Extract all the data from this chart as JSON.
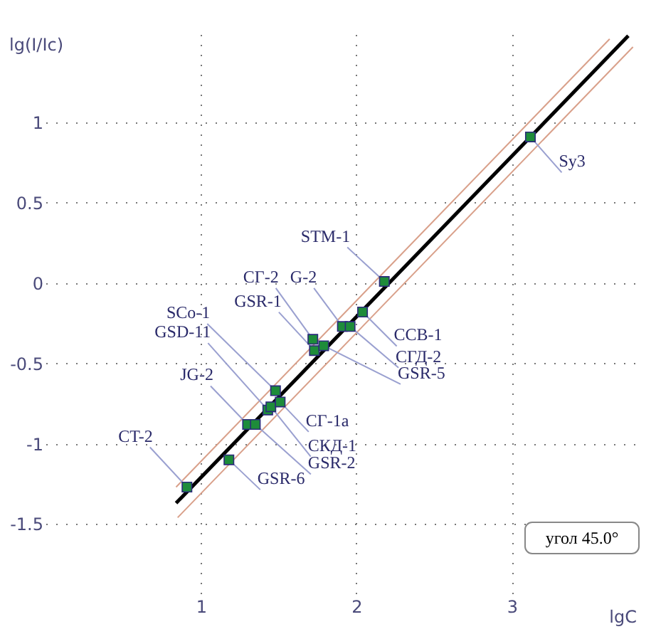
{
  "chart_data": {
    "type": "scatter",
    "xlabel": "lgC",
    "ylabel": "lg(I/Ic)",
    "xlim": [
      0,
      3.8
    ],
    "ylim": [
      -1.95,
      1.55
    ],
    "xticks": [
      1,
      2,
      3
    ],
    "yticks": [
      -1.5,
      -1,
      -0.5,
      0,
      0.5,
      1
    ],
    "grid": true,
    "series": [
      {
        "type": "line",
        "color": "#000000",
        "x": [
          0.84,
          3.75
        ],
        "values": [
          -1.37,
          1.54
        ]
      },
      {
        "type": "line",
        "color": "#d9a08a",
        "x": [
          0.84,
          3.63
        ],
        "values": [
          -1.27,
          1.52
        ]
      },
      {
        "type": "line",
        "color": "#d9a08a",
        "x": [
          0.85,
          3.78
        ],
        "values": [
          -1.46,
          1.47
        ]
      },
      {
        "marker": "square",
        "color": "#1e8c3a",
        "x": [
          0.91,
          1.18,
          1.3,
          1.35,
          1.43,
          1.45,
          1.48,
          1.51,
          1.72,
          1.73,
          1.79,
          1.91,
          1.96,
          2.04,
          2.18,
          3.12
        ],
        "values": [
          -1.27,
          -1.1,
          -0.88,
          -0.88,
          -0.79,
          -0.77,
          -0.67,
          -0.74,
          -0.35,
          -0.42,
          -0.39,
          -0.27,
          -0.27,
          -0.18,
          0.01,
          0.91
        ]
      }
    ],
    "annotations": [
      {
        "text": "CT-2",
        "x": 0.91,
        "y": -1.27
      },
      {
        "text": "GSR-6",
        "x": 1.18,
        "y": -1.1
      },
      {
        "text": "JG-2",
        "x": 1.3,
        "y": -0.88
      },
      {
        "text": "GSR-2",
        "x": 1.35,
        "y": -0.88
      },
      {
        "text": "GSD-11",
        "x": 1.43,
        "y": -0.79
      },
      {
        "text": "СКД-1",
        "x": 1.45,
        "y": -0.77
      },
      {
        "text": "SCo-1",
        "x": 1.48,
        "y": -0.67
      },
      {
        "text": "СГ-1а",
        "x": 1.51,
        "y": -0.74
      },
      {
        "text": "СГ-2",
        "x": 1.72,
        "y": -0.35
      },
      {
        "text": "GSR-1",
        "x": 1.73,
        "y": -0.42
      },
      {
        "text": "GSR-5",
        "x": 1.79,
        "y": -0.39
      },
      {
        "text": "G-2",
        "x": 1.91,
        "y": -0.27
      },
      {
        "text": "СГД-2",
        "x": 1.96,
        "y": -0.27
      },
      {
        "text": "ССВ-1",
        "x": 2.04,
        "y": -0.18
      },
      {
        "text": "STM-1",
        "x": 2.18,
        "y": 0.01
      },
      {
        "text": "Sy3",
        "x": 3.12,
        "y": 0.91
      },
      "угол    45.0°"
    ]
  }
}
